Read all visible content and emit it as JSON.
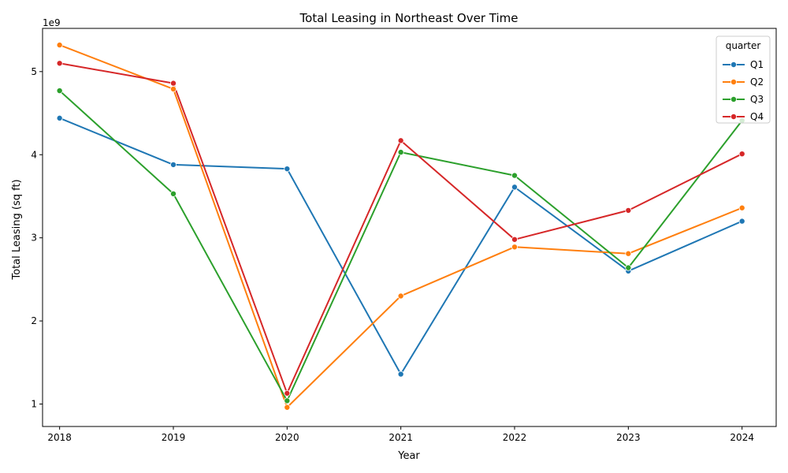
{
  "chart_data": {
    "type": "line",
    "title": "Total Leasing in Northeast Over Time",
    "xlabel": "Year",
    "ylabel": "Total Leasing (sq ft)",
    "y_offset_label": "1e9",
    "x": [
      2018,
      2019,
      2020,
      2021,
      2022,
      2023,
      2024
    ],
    "x_tick_labels": [
      "2018",
      "2019",
      "2020",
      "2021",
      "2022",
      "2023",
      "2024"
    ],
    "y_ticks": [
      1,
      2,
      3,
      4,
      5
    ],
    "y_tick_labels": [
      "1",
      "2",
      "3",
      "4",
      "5"
    ],
    "y_scale": 1000000000,
    "xlim": [
      2017.85,
      2024.3
    ],
    "ylim": [
      0.73,
      5.52
    ],
    "grid": false,
    "legend": {
      "title": "quarter",
      "placement": "top-right"
    },
    "series": [
      {
        "name": "Q1",
        "color": "#1f77b4",
        "values": [
          4.44,
          3.88,
          3.83,
          1.36,
          3.61,
          2.6,
          3.2
        ]
      },
      {
        "name": "Q2",
        "color": "#ff7f0e",
        "values": [
          5.32,
          4.79,
          0.96,
          2.3,
          2.89,
          2.81,
          3.36
        ]
      },
      {
        "name": "Q3",
        "color": "#2ca02c",
        "values": [
          4.77,
          3.53,
          1.04,
          4.03,
          3.75,
          2.64,
          4.41
        ]
      },
      {
        "name": "Q4",
        "color": "#d62728",
        "values": [
          5.1,
          4.86,
          1.13,
          4.17,
          2.98,
          3.33,
          4.01
        ]
      }
    ]
  }
}
